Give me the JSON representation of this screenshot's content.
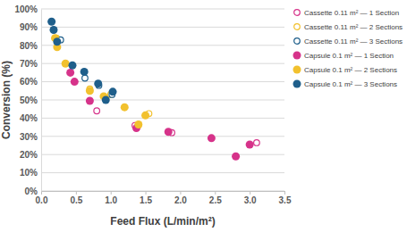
{
  "chart_data": {
    "type": "scatter",
    "x_label": "Feed Flux (L/min/m²)",
    "y_label": "Conversion (%)",
    "xlim": [
      0,
      3.5
    ],
    "ylim": [
      0,
      100
    ],
    "xticks": [
      {
        "value": 0,
        "label": "0.0"
      },
      0.5,
      {
        "value": 1,
        "label": "1.0"
      },
      1.5,
      {
        "value": 2,
        "label": "2.0"
      },
      2.5,
      {
        "value": 3,
        "label": "3.0"
      },
      3.5
    ],
    "yticks": [
      {
        "value": 0,
        "label": "0%"
      },
      {
        "value": 10,
        "label": "10%"
      },
      {
        "value": 20,
        "label": "20%"
      },
      {
        "value": 30,
        "label": "30%"
      },
      {
        "value": 40,
        "label": "40%"
      },
      {
        "value": 50,
        "label": "50%"
      },
      {
        "value": 60,
        "label": "60%"
      },
      {
        "value": 70,
        "label": "70%"
      },
      {
        "value": 80,
        "label": "80%"
      },
      {
        "value": 90,
        "label": "90%"
      },
      {
        "value": 100,
        "label": "100%"
      }
    ],
    "grid": true,
    "legend": "right",
    "series": [
      {
        "name": "Cassette 0.11 m² — 1 Section",
        "color": "#d6338a",
        "marker": "circle-open",
        "x": [
          0.8,
          1.35,
          1.88,
          3.1
        ],
        "values": [
          44,
          36,
          32,
          26.5
        ]
      },
      {
        "name": "Cassette 0.11 m² — 2 Sections",
        "color": "#f2c12e",
        "marker": "circle-open",
        "x": [
          0.22,
          0.35,
          0.7,
          1.0,
          1.4,
          1.55
        ],
        "values": [
          84,
          70,
          56,
          53,
          36,
          42.5
        ]
      },
      {
        "name": "Cassette 0.11 m² — 3 Sections",
        "color": "#1f5f8b",
        "marker": "circle-open",
        "x": [
          0.28,
          0.63,
          0.83,
          1.02
        ],
        "values": [
          83,
          62,
          58,
          53
        ]
      },
      {
        "name": "Capsule 0.1 m² — 1 Section",
        "color": "#d6338a",
        "marker": "circle",
        "x": [
          0.42,
          0.48,
          0.7,
          1.37,
          1.83,
          2.45,
          2.8,
          3.0
        ],
        "values": [
          65,
          60,
          49.5,
          34.5,
          32.5,
          29,
          19,
          25.5
        ]
      },
      {
        "name": "Capsule 0.1 m² — 2 Sections",
        "color": "#f2c12e",
        "marker": "circle",
        "x": [
          0.2,
          0.23,
          0.35,
          0.7,
          0.9,
          1.2,
          1.4,
          1.5
        ],
        "values": [
          84,
          79,
          70,
          55,
          52,
          46,
          36.5,
          41.5
        ]
      },
      {
        "name": "Capsule 0.1 m² — 3 Sections",
        "color": "#1f5f8b",
        "marker": "circle",
        "x": [
          0.15,
          0.18,
          0.23,
          0.45,
          0.62,
          0.82,
          0.93,
          1.03
        ],
        "values": [
          93,
          88.5,
          82,
          69,
          65.5,
          59,
          50,
          54.5
        ]
      }
    ]
  }
}
